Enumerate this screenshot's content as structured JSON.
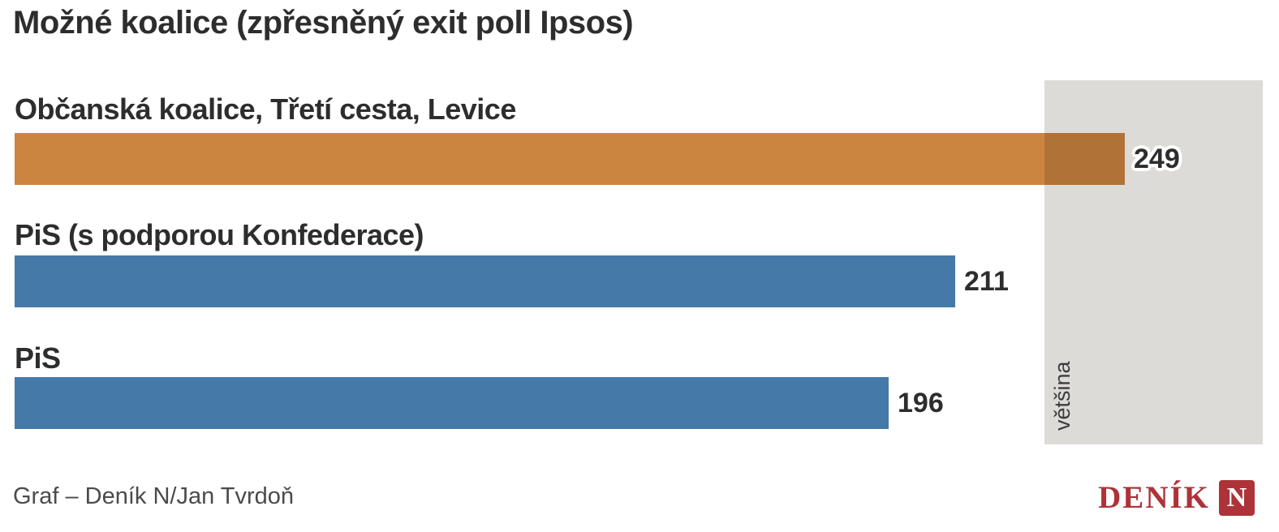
{
  "title": "Možné koalice (zpřesněný exit poll Ipsos)",
  "chart_data": {
    "type": "bar",
    "orientation": "horizontal",
    "title": "Možné koalice (zpřesněný exit poll Ipsos)",
    "categories": [
      "Občanská koalice, Třetí cesta, Levice",
      "PiS (s podporou Konfederace)",
      "PiS"
    ],
    "values": [
      249,
      211,
      196
    ],
    "colors": [
      "#cc8540",
      "#4479a8",
      "#4479a8"
    ],
    "xlim": [
      0,
      280
    ],
    "grid": false,
    "legend": false,
    "value_labels_shown": true,
    "majority": {
      "label": "většina",
      "threshold": 231,
      "zone_color": "#dcdbd8"
    }
  },
  "footer": {
    "credit": "Graf – Deník N/Jan Tvrdoň"
  },
  "logo": {
    "text": "DENÍK",
    "n": "N",
    "color": "#ad3339"
  }
}
